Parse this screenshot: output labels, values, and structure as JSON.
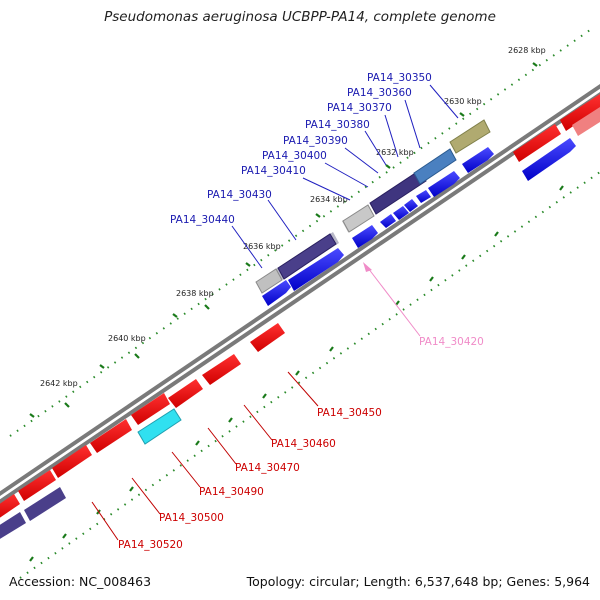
{
  "title": "Pseudomonas aeruginosa UCBPP-PA14, complete genome",
  "footer": {
    "accession": "Accession: NC_008463",
    "summary": "Topology: circular; Length: 6,537,648 bp; Genes: 5,964"
  },
  "scale_labels": [
    "2628 kbp",
    "2630 kbp",
    "2632 kbp",
    "2634 kbp",
    "2636 kbp",
    "2638 kbp",
    "2640 kbp",
    "2642 kbp"
  ],
  "forward_genes": [
    "PA14_30350",
    "PA14_30360",
    "PA14_30370",
    "PA14_30380",
    "PA14_30390",
    "PA14_30400",
    "PA14_30410",
    "PA14_30430",
    "PA14_30440"
  ],
  "highlighted_gene": "PA14_30420",
  "reverse_genes": [
    "PA14_30450",
    "PA14_30460",
    "PA14_30470",
    "PA14_30490",
    "PA14_30500",
    "PA14_30520"
  ],
  "colors": {
    "forward_label": "#1a1ab0",
    "reverse_label": "#cc0000",
    "highlight_label": "#f08cc8",
    "backbone": "#7a7a7a",
    "scale_tick": "#2a8a2a"
  }
}
